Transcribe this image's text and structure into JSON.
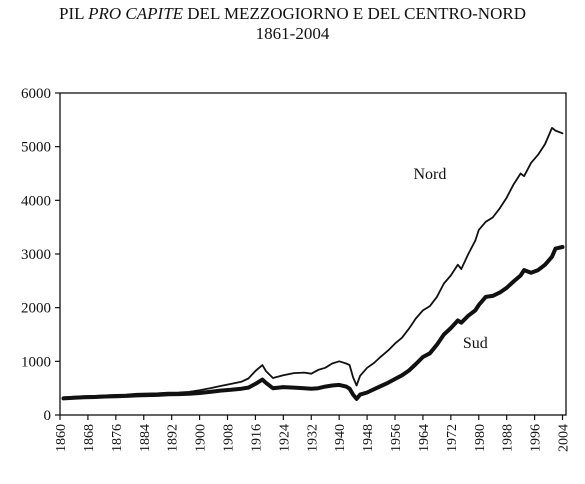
{
  "title": {
    "prefix": "PIL ",
    "emphasis": "PRO CAPITE",
    "suffix": " DEL MEZZOGIORNO E DEL CENTRO-NORD",
    "subtitle": "1861-2004"
  },
  "chart_data": {
    "type": "line",
    "title": "PIL PRO CAPITE DEL MEZZOGIORNO E DEL CENTRO-NORD",
    "subtitle": "1861-2004",
    "xlabel": "",
    "ylabel": "",
    "xlim": [
      1860,
      2005
    ],
    "ylim": [
      0,
      6000
    ],
    "grid": false,
    "legend": "none (direct labels)",
    "x_ticks": [
      1860,
      1868,
      1876,
      1884,
      1892,
      1900,
      1908,
      1916,
      1924,
      1932,
      1940,
      1948,
      1956,
      1964,
      1972,
      1980,
      1988,
      1996,
      2004
    ],
    "y_ticks": [
      0,
      1000,
      2000,
      3000,
      4000,
      5000,
      6000
    ],
    "series": [
      {
        "name": "Nord",
        "label_pos": [
          1997,
          1966,
          4400
        ],
        "stroke_width": 1.8,
        "points": [
          [
            1861,
            330
          ],
          [
            1864,
            340
          ],
          [
            1867,
            350
          ],
          [
            1870,
            355
          ],
          [
            1873,
            365
          ],
          [
            1876,
            375
          ],
          [
            1879,
            380
          ],
          [
            1882,
            395
          ],
          [
            1885,
            400
          ],
          [
            1888,
            405
          ],
          [
            1891,
            415
          ],
          [
            1894,
            420
          ],
          [
            1897,
            430
          ],
          [
            1900,
            460
          ],
          [
            1903,
            500
          ],
          [
            1906,
            540
          ],
          [
            1909,
            580
          ],
          [
            1912,
            620
          ],
          [
            1914,
            680
          ],
          [
            1916,
            820
          ],
          [
            1918,
            930
          ],
          [
            1919,
            820
          ],
          [
            1921,
            690
          ],
          [
            1924,
            740
          ],
          [
            1927,
            780
          ],
          [
            1930,
            790
          ],
          [
            1932,
            770
          ],
          [
            1934,
            840
          ],
          [
            1936,
            880
          ],
          [
            1938,
            960
          ],
          [
            1940,
            1000
          ],
          [
            1942,
            960
          ],
          [
            1943,
            930
          ],
          [
            1944,
            700
          ],
          [
            1945,
            550
          ],
          [
            1946,
            730
          ],
          [
            1948,
            880
          ],
          [
            1950,
            970
          ],
          [
            1952,
            1090
          ],
          [
            1954,
            1200
          ],
          [
            1956,
            1330
          ],
          [
            1958,
            1440
          ],
          [
            1960,
            1610
          ],
          [
            1962,
            1800
          ],
          [
            1964,
            1950
          ],
          [
            1966,
            2030
          ],
          [
            1968,
            2200
          ],
          [
            1970,
            2450
          ],
          [
            1972,
            2600
          ],
          [
            1974,
            2800
          ],
          [
            1975,
            2720
          ],
          [
            1977,
            3000
          ],
          [
            1979,
            3250
          ],
          [
            1980,
            3450
          ],
          [
            1982,
            3600
          ],
          [
            1984,
            3680
          ],
          [
            1986,
            3850
          ],
          [
            1988,
            4050
          ],
          [
            1990,
            4300
          ],
          [
            1992,
            4500
          ],
          [
            1993,
            4450
          ],
          [
            1995,
            4700
          ],
          [
            1997,
            4850
          ],
          [
            1999,
            5050
          ],
          [
            2001,
            5350
          ],
          [
            2002,
            5300
          ],
          [
            2004,
            5250
          ]
        ]
      },
      {
        "name": "Sud",
        "label_pos": [
          1976,
          1979,
          1250
        ],
        "stroke_width": 4,
        "points": [
          [
            1861,
            310
          ],
          [
            1864,
            320
          ],
          [
            1867,
            330
          ],
          [
            1870,
            335
          ],
          [
            1873,
            345
          ],
          [
            1876,
            350
          ],
          [
            1879,
            355
          ],
          [
            1882,
            365
          ],
          [
            1885,
            370
          ],
          [
            1888,
            375
          ],
          [
            1891,
            385
          ],
          [
            1894,
            390
          ],
          [
            1897,
            395
          ],
          [
            1900,
            410
          ],
          [
            1903,
            430
          ],
          [
            1906,
            455
          ],
          [
            1909,
            470
          ],
          [
            1912,
            490
          ],
          [
            1914,
            510
          ],
          [
            1916,
            580
          ],
          [
            1918,
            660
          ],
          [
            1919,
            600
          ],
          [
            1921,
            500
          ],
          [
            1924,
            520
          ],
          [
            1927,
            510
          ],
          [
            1930,
            500
          ],
          [
            1932,
            490
          ],
          [
            1934,
            500
          ],
          [
            1936,
            530
          ],
          [
            1938,
            550
          ],
          [
            1940,
            560
          ],
          [
            1942,
            530
          ],
          [
            1943,
            490
          ],
          [
            1944,
            380
          ],
          [
            1945,
            300
          ],
          [
            1946,
            380
          ],
          [
            1948,
            420
          ],
          [
            1950,
            480
          ],
          [
            1952,
            540
          ],
          [
            1954,
            600
          ],
          [
            1956,
            670
          ],
          [
            1958,
            740
          ],
          [
            1960,
            830
          ],
          [
            1962,
            950
          ],
          [
            1964,
            1080
          ],
          [
            1966,
            1150
          ],
          [
            1968,
            1310
          ],
          [
            1970,
            1500
          ],
          [
            1972,
            1620
          ],
          [
            1974,
            1760
          ],
          [
            1975,
            1720
          ],
          [
            1977,
            1850
          ],
          [
            1979,
            1950
          ],
          [
            1980,
            2050
          ],
          [
            1982,
            2200
          ],
          [
            1984,
            2220
          ],
          [
            1986,
            2280
          ],
          [
            1988,
            2370
          ],
          [
            1990,
            2490
          ],
          [
            1992,
            2600
          ],
          [
            1993,
            2700
          ],
          [
            1995,
            2650
          ],
          [
            1997,
            2700
          ],
          [
            1999,
            2800
          ],
          [
            2001,
            2950
          ],
          [
            2002,
            3100
          ],
          [
            2004,
            3130
          ]
        ]
      }
    ]
  }
}
